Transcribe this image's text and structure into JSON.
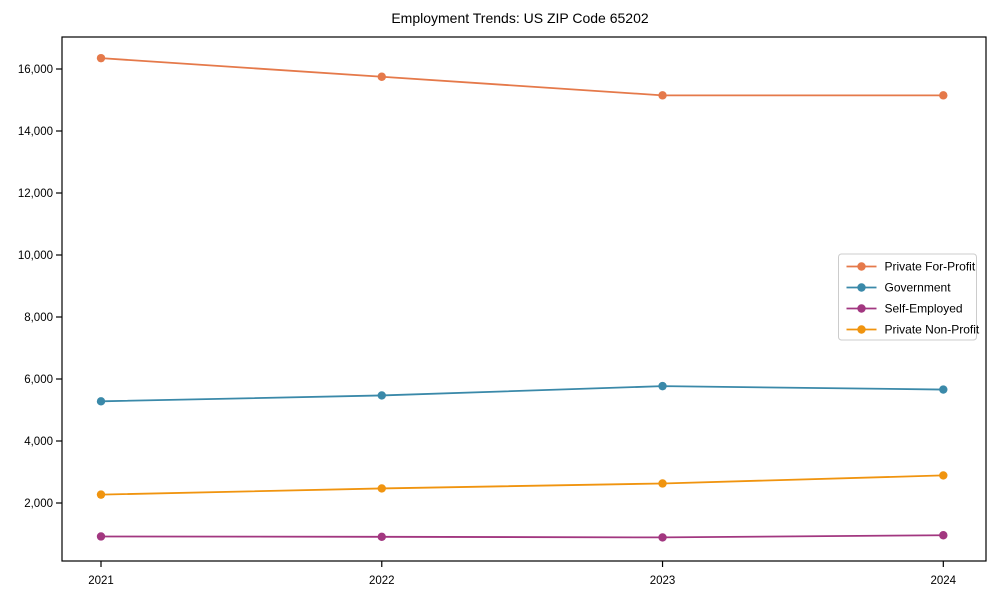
{
  "figure": {
    "background": "#ffffff",
    "axis_color": "#000000",
    "legend_border_color": "#cccccc",
    "legend_background": "#ffffff"
  },
  "chart_data": {
    "type": "line",
    "title": "Employment Trends: US ZIP Code 65202",
    "xlabel": "",
    "ylabel": "",
    "x": [
      2021,
      2022,
      2023,
      2024
    ],
    "x_tick_labels": [
      "2021",
      "2022",
      "2023",
      "2024"
    ],
    "series": [
      {
        "name": "Private For-Profit",
        "color": "#e5794a",
        "values": [
          16350,
          15750,
          15150,
          15150
        ]
      },
      {
        "name": "Government",
        "color": "#3a89a9",
        "values": [
          5280,
          5470,
          5770,
          5660
        ]
      },
      {
        "name": "Self-Employed",
        "color": "#a23780",
        "values": [
          920,
          910,
          890,
          960
        ]
      },
      {
        "name": "Private Non-Profit",
        "color": "#f0940f",
        "values": [
          2270,
          2470,
          2630,
          2890
        ]
      }
    ],
    "y_ticks": [
      2000,
      4000,
      6000,
      8000,
      10000,
      12000,
      14000,
      16000
    ],
    "y_tick_labels": [
      "2,000",
      "4,000",
      "6,000",
      "8,000",
      "10,000",
      "12,000",
      "14,000",
      "16,000"
    ],
    "ylim": [
      130,
      17030
    ],
    "grid": false,
    "legend_position": "center-right",
    "marker": "circle"
  }
}
